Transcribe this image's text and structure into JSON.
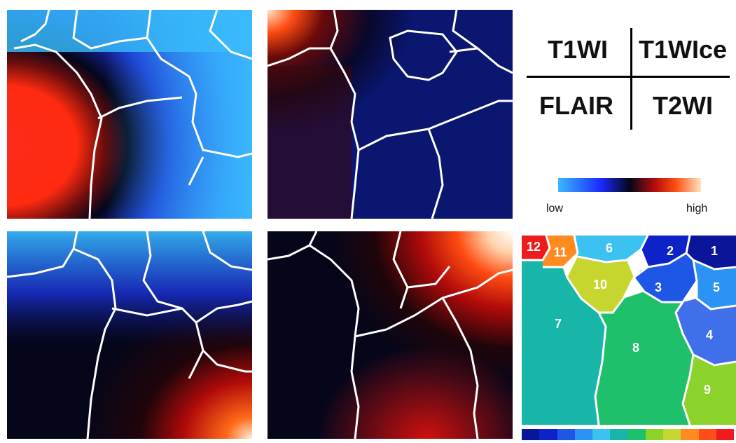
{
  "legend": {
    "top_left": "T1WI",
    "top_right": "T1WIce",
    "bottom_left": "FLAIR",
    "bottom_right": "T2WI"
  },
  "colorbar": {
    "low_label": "low",
    "high_label": "high"
  },
  "cluster_labels": [
    "12",
    "11",
    "6",
    "2",
    "1",
    "10",
    "3",
    "5",
    "7",
    "4",
    "8",
    "9"
  ],
  "cluster_colors": [
    "#0a1599",
    "#0d23c7",
    "#1e56e6",
    "#2a93f3",
    "#3cc2f0",
    "#18b6a8",
    "#1fc06b",
    "#8bd32a",
    "#c7d52f",
    "#ff8a20",
    "#ff4d1a",
    "#ee1c1c"
  ]
}
